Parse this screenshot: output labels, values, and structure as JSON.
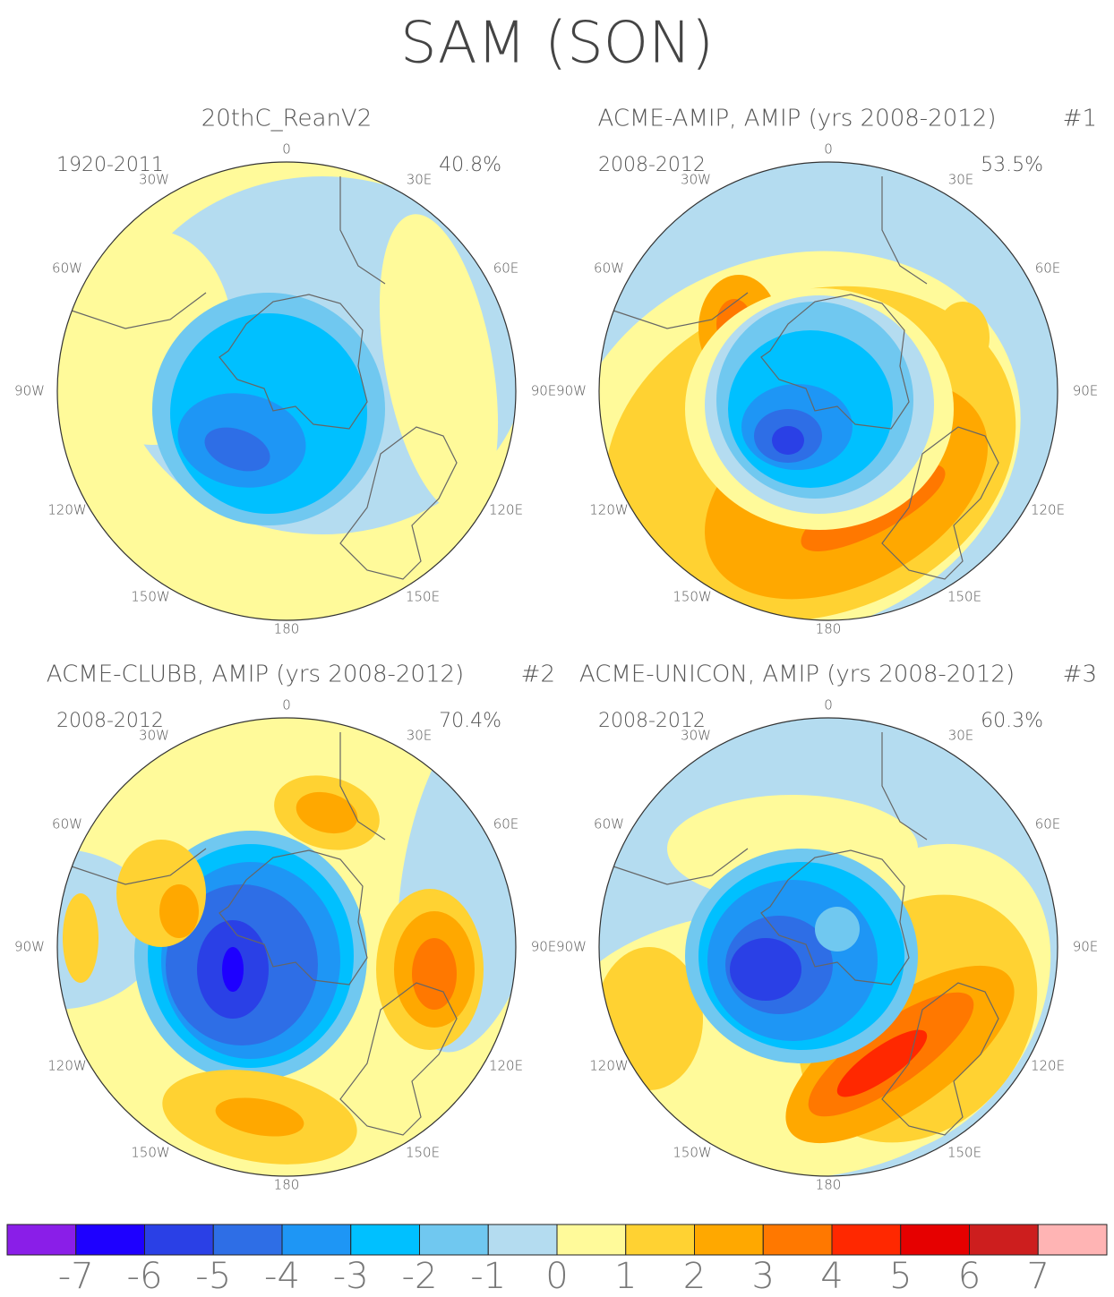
{
  "title": "SAM (SON)",
  "lon_labels": [
    "0",
    "30E",
    "60E",
    "90E",
    "120E",
    "150E",
    "180",
    "150W",
    "120W",
    "90W",
    "60W",
    "30W"
  ],
  "panels": [
    {
      "title": "20thC_ReanV2",
      "period": "1920-2011",
      "variance": "40.8%"
    },
    {
      "title": "ACME-AMIP, AMIP (yrs 2008-2012)",
      "tag": "#1",
      "period": "2008-2012",
      "variance": "53.5%"
    },
    {
      "title": "ACME-CLUBB, AMIP (yrs 2008-2012)",
      "tag": "#2",
      "period": "2008-2012",
      "variance": "70.4%"
    },
    {
      "title": "ACME-UNICON, AMIP (yrs 2008-2012)",
      "tag": "#3",
      "period": "2008-2012",
      "variance": "60.3%"
    }
  ],
  "colorbar": {
    "colors": [
      "#8a1ee8",
      "#1e00ff",
      "#2a40e6",
      "#2e6ee6",
      "#1e96f5",
      "#00c0ff",
      "#70c8f0",
      "#b4dcf0",
      "#fffa9a",
      "#ffd232",
      "#ffa800",
      "#ff7800",
      "#ff2800",
      "#e60000",
      "#cd1e1e",
      "#ffb4b4"
    ],
    "ticks": [
      -7,
      -6,
      -5,
      -4,
      -3,
      -2,
      -1,
      0,
      1,
      2,
      3,
      4,
      5,
      6,
      7
    ]
  }
}
